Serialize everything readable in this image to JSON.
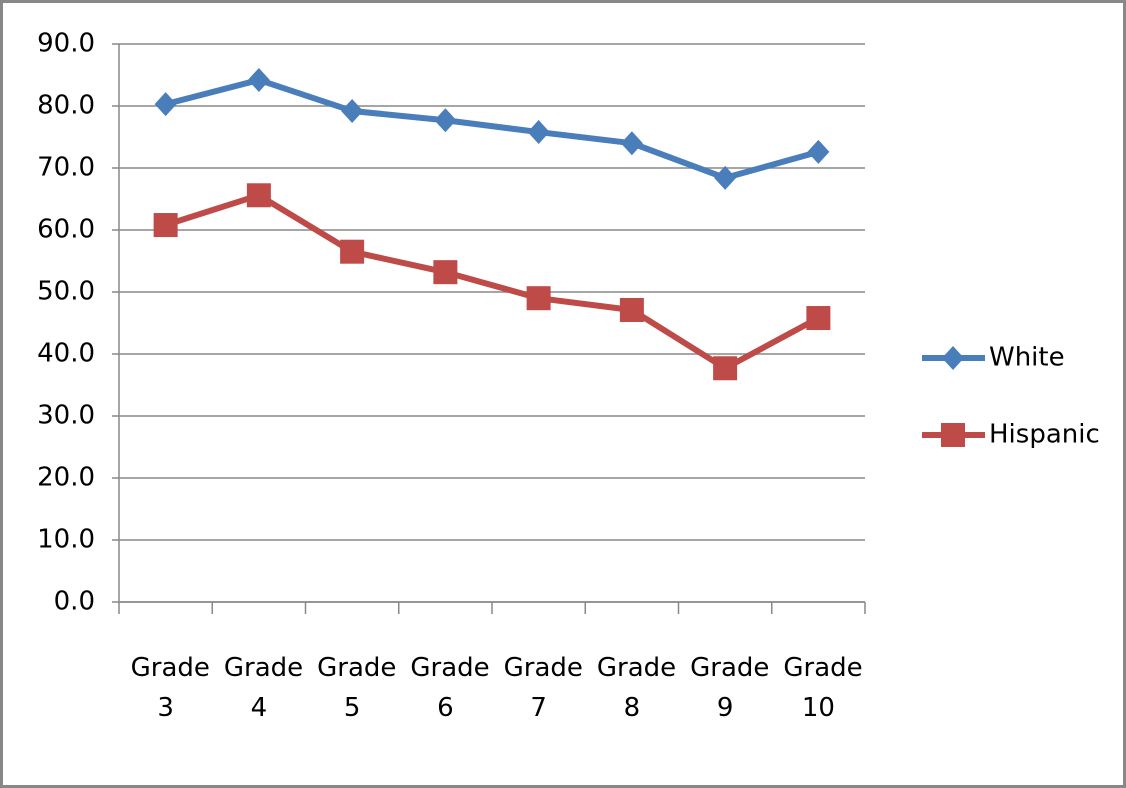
{
  "chart_data": {
    "type": "line",
    "categories": [
      "Grade 3",
      "Grade 4",
      "Grade 5",
      "Grade 6",
      "Grade 7",
      "Grade 8",
      "Grade 9",
      "Grade 10"
    ],
    "series": [
      {
        "name": "White",
        "color": "#4a7ebb",
        "marker": "diamond",
        "values": [
          80.3,
          84.2,
          79.2,
          77.7,
          75.8,
          74.0,
          68.4,
          72.6
        ]
      },
      {
        "name": "Hispanic",
        "color": "#be4b48",
        "marker": "square",
        "values": [
          60.8,
          65.6,
          56.5,
          53.2,
          49.0,
          47.1,
          37.7,
          45.8
        ]
      }
    ],
    "ylim": [
      0,
      90
    ],
    "yticks": [
      {
        "value": 0,
        "label": "0.0"
      },
      {
        "value": 10,
        "label": "10.0"
      },
      {
        "value": 20,
        "label": "20.0"
      },
      {
        "value": 30,
        "label": "30.0"
      },
      {
        "value": 40,
        "label": "40.0"
      },
      {
        "value": 50,
        "label": "50.0"
      },
      {
        "value": 60,
        "label": "60.0"
      },
      {
        "value": 70,
        "label": "70.0"
      },
      {
        "value": 80,
        "label": "80.0"
      },
      {
        "value": 90,
        "label": "90.0"
      }
    ],
    "grid": true,
    "legend": "right"
  }
}
